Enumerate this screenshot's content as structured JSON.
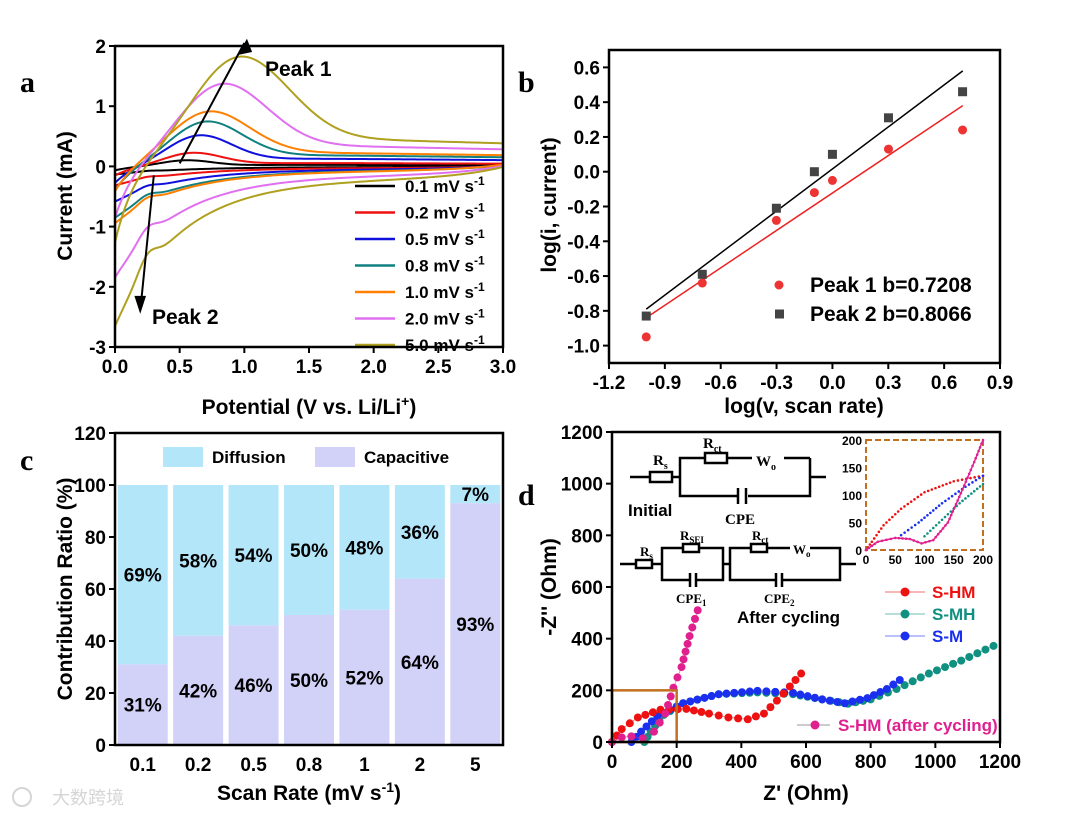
{
  "watermark": "大数跨境",
  "chart_data": [
    {
      "panel": "a",
      "type": "line",
      "xlabel": "Potential (V vs. Li/Li",
      "xlabel_sup": "+",
      "xlabel_end": ")",
      "ylabel": "Current (mA)",
      "xlim": [
        0,
        3.0
      ],
      "ylim": [
        -3,
        2
      ],
      "xticks": [
        "0.0",
        "0.5",
        "1.0",
        "1.5",
        "2.0",
        "2.5",
        "3.0"
      ],
      "yticks": [
        "-3",
        "-2",
        "-1",
        "0",
        "1",
        "2"
      ],
      "annotations": [
        "Peak 1",
        "Peak 2"
      ],
      "series": [
        {
          "name": "0.1 mV s",
          "sup": "-1",
          "color": "#000000",
          "anodic_peak": [
            0.55,
            0.1
          ],
          "min_current_at_0V": -0.15
        },
        {
          "name": "0.2 mV s",
          "sup": "-1",
          "color": "#ee1111",
          "anodic_peak": [
            0.6,
            0.22
          ],
          "min_current_at_0V": -0.35
        },
        {
          "name": "0.5 mV s",
          "sup": "-1",
          "color": "#1010dd",
          "anodic_peak": [
            0.65,
            0.5
          ],
          "min_current_at_0V": -0.65
        },
        {
          "name": "0.8 mV s",
          "sup": "-1",
          "color": "#108080",
          "anodic_peak": [
            0.7,
            0.72
          ],
          "min_current_at_0V": -0.95
        },
        {
          "name": "1.0 mV s",
          "sup": "-1",
          "color": "#ff8000",
          "anodic_peak": [
            0.72,
            0.88
          ],
          "min_current_at_0V": -1.05
        },
        {
          "name": "2.0 mV s",
          "sup": "-1",
          "color": "#e070f0",
          "anodic_peak": [
            0.82,
            1.32
          ],
          "min_current_at_0V": -2.05
        },
        {
          "name": "5.0 mV s",
          "sup": "-1",
          "color": "#b0a020",
          "anodic_peak": [
            0.95,
            1.75
          ],
          "min_current_at_0V": -2.95
        }
      ]
    },
    {
      "panel": "b",
      "type": "scatter",
      "xlabel": "log(v, scan rate)",
      "ylabel": "log(i, current)",
      "xlim": [
        -1.2,
        0.9
      ],
      "ylim": [
        -1.1,
        0.7
      ],
      "xticks": [
        "-1.2",
        "-0.9",
        "-0.6",
        "-0.3",
        "0.0",
        "0.3",
        "0.6",
        "0.9"
      ],
      "yticks": [
        "-1.0",
        "-0.8",
        "-0.6",
        "-0.4",
        "-0.2",
        "0.0",
        "0.2",
        "0.4",
        "0.6"
      ],
      "x": [
        -1.0,
        -0.699,
        -0.301,
        -0.097,
        0.0,
        0.301,
        0.699
      ],
      "series": [
        {
          "name": "Peak 1 b=0.7208",
          "color": "#ee3333",
          "marker": "circle",
          "values": [
            -0.95,
            -0.64,
            -0.28,
            -0.12,
            -0.05,
            0.13,
            0.24
          ],
          "fit": [
            [
              -1.0,
              -0.84
            ],
            [
              0.7,
              0.38
            ]
          ]
        },
        {
          "name": "Peak 2 b=0.8066",
          "color": "#444444",
          "marker": "square",
          "values": [
            -0.83,
            -0.59,
            -0.21,
            0.0,
            0.1,
            0.31,
            0.46
          ],
          "fit": [
            [
              -1.0,
              -0.79
            ],
            [
              0.7,
              0.58
            ]
          ]
        }
      ]
    },
    {
      "panel": "c",
      "type": "bar",
      "stacked": true,
      "xlabel": "Scan Rate (mV s",
      "xlabel_sup": "-1",
      "xlabel_end": ")",
      "ylabel": "Contribution Ratio (%)",
      "ylim": [
        0,
        120
      ],
      "yticks": [
        "0",
        "20",
        "40",
        "60",
        "80",
        "100",
        "120"
      ],
      "categories": [
        "0.1",
        "0.2",
        "0.5",
        "0.8",
        "1",
        "2",
        "5"
      ],
      "series": [
        {
          "name": "Capacitive",
          "color": "#d2d2f8",
          "values": [
            31,
            42,
            46,
            50,
            52,
            64,
            93
          ],
          "labels": [
            "31%",
            "42%",
            "46%",
            "50%",
            "52%",
            "64%",
            "93%"
          ]
        },
        {
          "name": "Diffusion",
          "color": "#b4e6fa",
          "values": [
            69,
            58,
            54,
            50,
            48,
            36,
            7
          ],
          "labels": [
            "69%",
            "58%",
            "54%",
            "50%",
            "48%",
            "36%",
            "7%"
          ]
        }
      ],
      "legend": "top"
    },
    {
      "panel": "d",
      "type": "scatter",
      "xlabel": "Z' (Ohm)",
      "ylabel": "-Z'' (Ohm)",
      "xlim": [
        0,
        1200
      ],
      "ylim": [
        0,
        1200
      ],
      "xticks": [
        "0",
        "200",
        "400",
        "600",
        "800",
        "1000",
        "1200"
      ],
      "yticks": [
        "0",
        "200",
        "400",
        "600",
        "800",
        "1000",
        "1200"
      ],
      "inset": {
        "xlim": [
          0,
          200
        ],
        "ylim": [
          0,
          200
        ],
        "xticks": [
          "0",
          "50",
          "100",
          "150",
          "200"
        ],
        "yticks": [
          "0",
          "50",
          "100",
          "150",
          "200"
        ]
      },
      "circuits": {
        "initial": {
          "title": "Initial",
          "labels": [
            "R",
            "s",
            "R",
            "ct",
            "W",
            "o",
            "CPE"
          ]
        },
        "after": {
          "title": "After cycling",
          "labels": [
            "R",
            "s",
            "R",
            "SEI",
            "R",
            "ct",
            "W",
            "o",
            "CPE",
            "1",
            "CPE",
            "2"
          ]
        }
      },
      "series": [
        {
          "name": "S-HM",
          "color": "#ee1111",
          "points": [
            [
              0,
              0
            ],
            [
              30,
              50
            ],
            [
              80,
              95
            ],
            [
              150,
              125
            ],
            [
              230,
              128
            ],
            [
              300,
              110
            ],
            [
              360,
              95
            ],
            [
              420,
              88
            ],
            [
              470,
              110
            ],
            [
              510,
              160
            ],
            [
              550,
              215
            ],
            [
              585,
              265
            ]
          ]
        },
        {
          "name": "S-MH",
          "color": "#109080",
          "points": [
            [
              100,
              0
            ],
            [
              120,
              40
            ],
            [
              160,
              105
            ],
            [
              220,
              150
            ],
            [
              330,
              185
            ],
            [
              450,
              192
            ],
            [
              560,
              185
            ],
            [
              650,
              165
            ],
            [
              730,
              148
            ],
            [
              800,
              165
            ],
            [
              880,
              205
            ],
            [
              980,
              265
            ],
            [
              1080,
              315
            ],
            [
              1180,
              372
            ]
          ]
        },
        {
          "name": "S-M",
          "color": "#1a30ee",
          "points": [
            [
              60,
              0
            ],
            [
              90,
              40
            ],
            [
              140,
              100
            ],
            [
              220,
              150
            ],
            [
              330,
              185
            ],
            [
              450,
              198
            ],
            [
              560,
              190
            ],
            [
              650,
              165
            ],
            [
              720,
              150
            ],
            [
              790,
              170
            ],
            [
              850,
              205
            ],
            [
              890,
              240
            ]
          ]
        },
        {
          "name": "S-HM (after cycling)",
          "color": "#e0208f",
          "points": [
            [
              0,
              0
            ],
            [
              30,
              18
            ],
            [
              60,
              22
            ],
            [
              95,
              14
            ],
            [
              130,
              40
            ],
            [
              165,
              110
            ],
            [
              190,
              210
            ],
            [
              215,
              290
            ],
            [
              240,
              410
            ],
            [
              265,
              510
            ]
          ]
        }
      ]
    }
  ],
  "panel_labels": [
    "a",
    "b",
    "c",
    "d"
  ]
}
